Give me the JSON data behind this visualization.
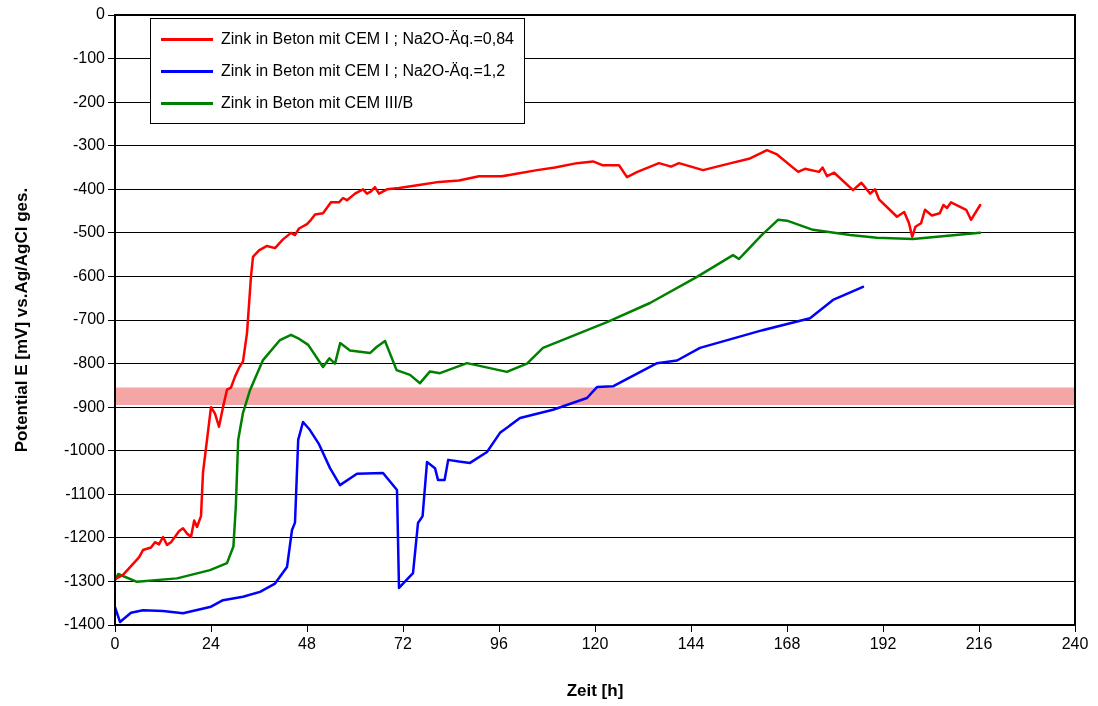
{
  "chart_data": {
    "type": "line",
    "xlabel": "Zeit [h]",
    "ylabel": "Potential E [mV] vs.Ag/AgCl ges.",
    "xlim": [
      0,
      240
    ],
    "xticks": [
      0,
      24,
      48,
      72,
      96,
      120,
      144,
      168,
      192,
      216,
      240
    ],
    "ylim": [
      -1400,
      0
    ],
    "yticks": [
      0,
      -100,
      -200,
      -300,
      -400,
      -500,
      -600,
      -700,
      -800,
      -900,
      -1000,
      -1100,
      -1200,
      -1300,
      -1400
    ],
    "grid": "y",
    "legend": "top left",
    "marker": "none",
    "line_style": "solid",
    "bands": [
      {
        "axis": "y",
        "from": -895,
        "to": -855,
        "color": "#f4a6a6"
      }
    ],
    "series": [
      {
        "name": "Zink in Beton mit CEM I ; Na2O-Äq.=0,84",
        "color": "#ff0000",
        "x": [
          0,
          2,
          4,
          6,
          7,
          9,
          10,
          11,
          12,
          13,
          14,
          16,
          17,
          18,
          19,
          19.8,
          20.5,
          21.5,
          22,
          23,
          24,
          25,
          26,
          27,
          28,
          29,
          30,
          31,
          32,
          33,
          34,
          34.5,
          36,
          38,
          40,
          42,
          44,
          45,
          46,
          48,
          49,
          50,
          52,
          54,
          56,
          57,
          58,
          60,
          62,
          63,
          64,
          65,
          66,
          68,
          71,
          76,
          81,
          86,
          91,
          96.7,
          100,
          105.5,
          110,
          115.5,
          119.5,
          122,
          126,
          128,
          130.6,
          136,
          139,
          141,
          147,
          154,
          158.5,
          163,
          165.5,
          170.8,
          172.5,
          176,
          176.9,
          178,
          179.8,
          184.5,
          186.6,
          188.8,
          190,
          191,
          195.5,
          197.3,
          198.5,
          199.3,
          200.1,
          201.5,
          202.5,
          204.2,
          206.2,
          207.1,
          208,
          209,
          212.8,
          214,
          216.3
        ],
        "values": [
          -1295,
          -1285,
          -1265,
          -1245,
          -1228,
          -1222,
          -1210,
          -1215,
          -1198,
          -1216,
          -1210,
          -1185,
          -1178,
          -1190,
          -1198,
          -1160,
          -1175,
          -1150,
          -1050,
          -975,
          -900,
          -915,
          -945,
          -900,
          -860,
          -855,
          -830,
          -810,
          -795,
          -730,
          -600,
          -555,
          -540,
          -530,
          -535,
          -515,
          -500,
          -505,
          -490,
          -480,
          -470,
          -458,
          -455,
          -430,
          -430,
          -420,
          -425,
          -410,
          -400,
          -410,
          -405,
          -395,
          -410,
          -400,
          -397,
          -390,
          -383,
          -380,
          -370,
          -370,
          -365,
          -356,
          -350,
          -340,
          -336,
          -345,
          -345,
          -372,
          -360,
          -340,
          -348,
          -340,
          -356,
          -340,
          -330,
          -310,
          -320,
          -360,
          -353,
          -360,
          -350,
          -370,
          -362,
          -402,
          -385,
          -410,
          -400,
          -423,
          -463,
          -452,
          -478,
          -509,
          -486,
          -478,
          -447,
          -460,
          -455,
          -436,
          -443,
          -430,
          -447,
          -470,
          -436
        ]
      },
      {
        "name": "Zink in Beton mit CEM I ; Na2O-Äq.=1,2",
        "color": "#0000ff",
        "x": [
          0,
          1.25,
          4,
          7,
          12,
          17,
          24,
          27,
          32,
          36.25,
          40,
          43,
          44.25,
          45,
          45.8,
          47,
          48.7,
          51,
          53.75,
          56.25,
          60.5,
          67,
          70.5,
          71,
          74.5,
          75.75,
          76.9,
          78,
          80,
          80.75,
          82.4,
          83.3,
          86,
          88.75,
          93,
          96.25,
          101.25,
          109.5,
          118,
          120.5,
          124.6,
          135.5,
          140.5,
          146.25,
          161.25,
          173.75,
          179.5,
          187
        ],
        "values": [
          -1359,
          -1393,
          -1372,
          -1366,
          -1368,
          -1373,
          -1358,
          -1343,
          -1335,
          -1324,
          -1305,
          -1267,
          -1182,
          -1165,
          -975,
          -934,
          -952,
          -985,
          -1040,
          -1079,
          -1053,
          -1051,
          -1090,
          -1315,
          -1281,
          -1166,
          -1150,
          -1026,
          -1040,
          -1067,
          -1067,
          -1021,
          -1025,
          -1028,
          -1003,
          -959,
          -925,
          -906,
          -879,
          -854,
          -852,
          -799,
          -793,
          -764,
          -725,
          -696,
          -654,
          -624
        ]
      },
      {
        "name": "Zink in Beton mit CEM III/B",
        "color": "#008000",
        "x": [
          0,
          0.8,
          5.5,
          15.5,
          23.75,
          28,
          29.6,
          30.2,
          30.8,
          32,
          33.75,
          37,
          41.25,
          44,
          45.8,
          48.3,
          52,
          53.6,
          55,
          56.3,
          58.75,
          63.75,
          65.4,
          67.5,
          70.4,
          73.75,
          76.25,
          78.75,
          81.25,
          88,
          98,
          103,
          107,
          123,
          133.75,
          145.5,
          154.5,
          156,
          161.25,
          165.75,
          168,
          174.5,
          183.75,
          190.5,
          199.5,
          216.25
        ],
        "values": [
          -1297,
          -1283,
          -1301,
          -1293,
          -1274,
          -1258,
          -1220,
          -1129,
          -975,
          -913,
          -861,
          -792,
          -746,
          -734,
          -742,
          -757,
          -808,
          -788,
          -800,
          -753,
          -770,
          -776,
          -762,
          -748,
          -815,
          -826,
          -845,
          -818,
          -822,
          -799,
          -819,
          -800,
          -764,
          -705,
          -661,
          -601,
          -551,
          -560,
          -509,
          -470,
          -472,
          -493,
          -505,
          -511,
          -514,
          -500
        ]
      }
    ]
  }
}
